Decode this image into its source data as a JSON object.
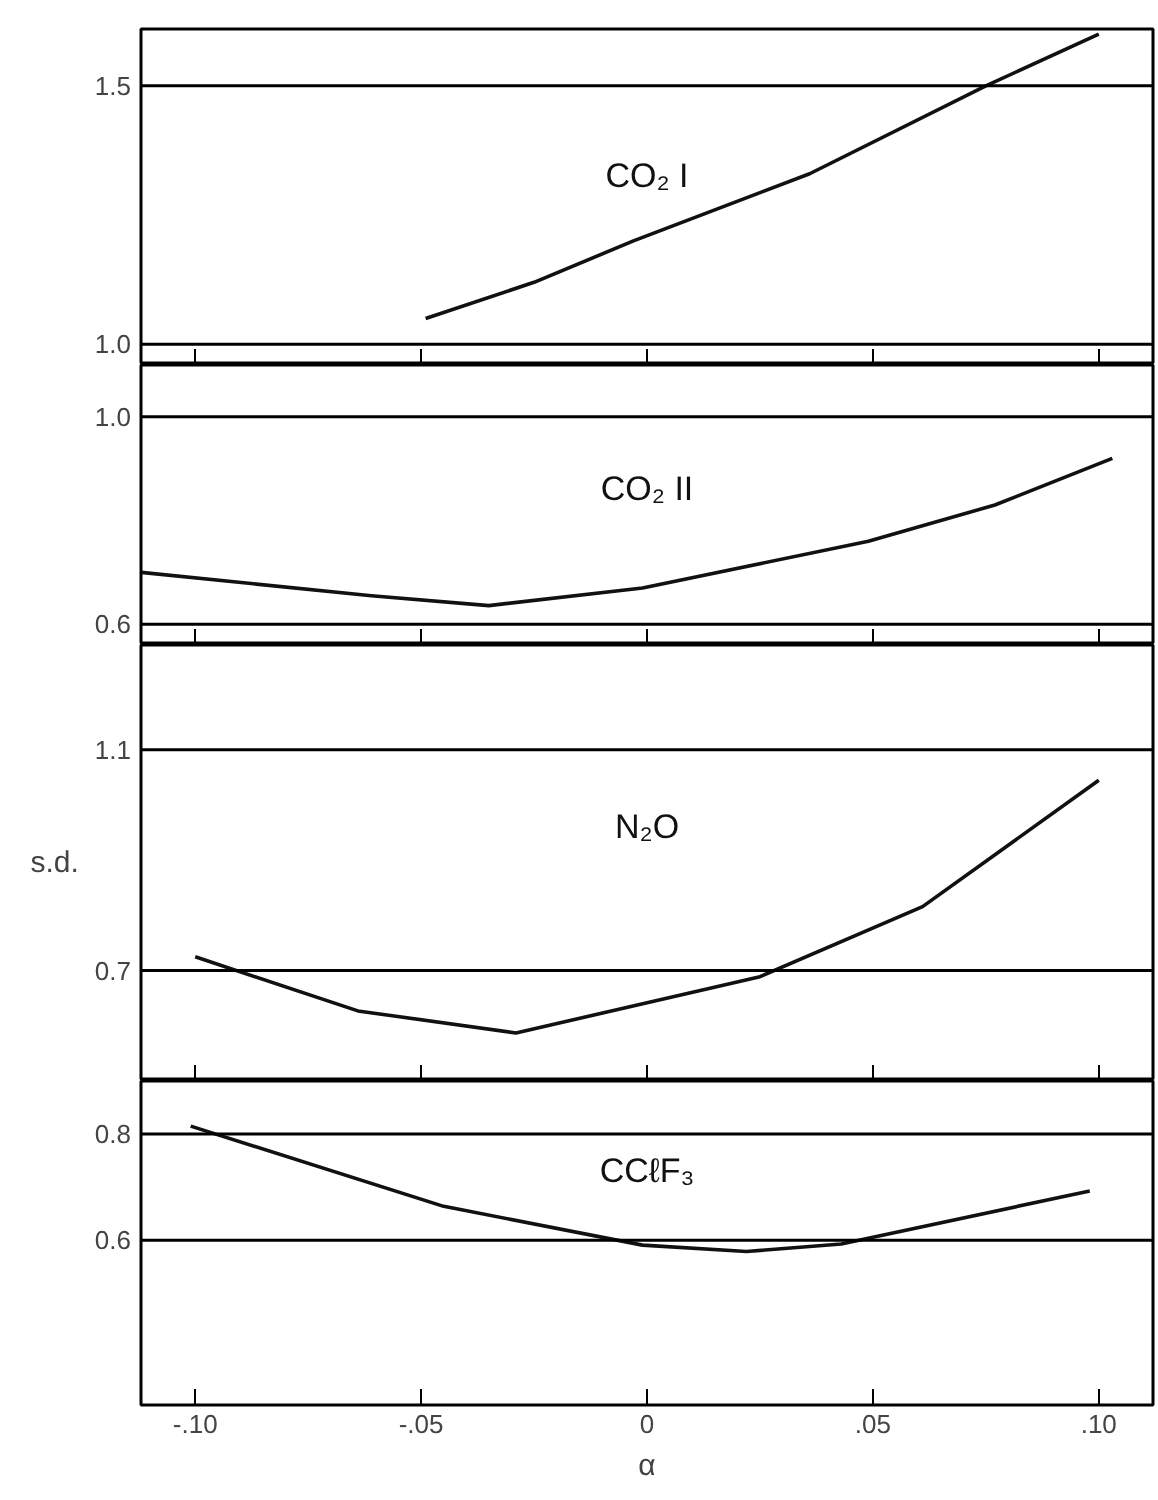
{
  "chart_data": [
    {
      "type": "line",
      "xlim": [
        -0.112,
        0.112
      ],
      "xticks": [
        {
          "value": -0.1,
          "label": null
        },
        {
          "value": -0.05,
          "label": null
        },
        {
          "value": 0,
          "label": null
        },
        {
          "value": 0.05,
          "label": null
        },
        {
          "value": 0.1,
          "label": null
        }
      ],
      "ylim": [
        0.96,
        1.61
      ],
      "yticks": [
        {
          "value": 1,
          "label": "1.0"
        },
        1.5
      ],
      "tick_labels": "y",
      "grid": false,
      "ref_lines": [
        {
          "axis": "y",
          "value": 1.5
        },
        {
          "axis": "y",
          "value": 1
        }
      ],
      "series": [
        {
          "name": "CO₂ I",
          "color": "#111111",
          "x": [
            -0.049,
            -0.025,
            -0.003,
            0.036,
            0.075,
            0.1
          ],
          "values": [
            1.05,
            1.12,
            1.2,
            1.33,
            1.5,
            1.6
          ]
        }
      ]
    },
    {
      "type": "line",
      "xlim": [
        -0.112,
        0.112
      ],
      "xticks": [
        {
          "value": -0.1,
          "label": null
        },
        {
          "value": -0.05,
          "label": null
        },
        {
          "value": 0,
          "label": null
        },
        {
          "value": 0.05,
          "label": null
        },
        {
          "value": 0.1,
          "label": null
        }
      ],
      "ylim": [
        0.56,
        1.1
      ],
      "yticks": [
        0.6,
        {
          "value": 1,
          "label": "1.0"
        }
      ],
      "tick_labels": "y",
      "grid": false,
      "ref_lines": [
        {
          "axis": "y",
          "value": 1
        },
        {
          "axis": "y",
          "value": 0.6
        }
      ],
      "series": [
        {
          "name": "CO₂ II",
          "color": "#111111",
          "x": [
            -0.112,
            -0.061,
            -0.035,
            -0.001,
            0.049,
            0.077,
            0.103
          ],
          "values": [
            0.7,
            0.655,
            0.636,
            0.67,
            0.76,
            0.83,
            0.92
          ]
        }
      ]
    },
    {
      "type": "line",
      "xlim": [
        -0.112,
        0.112
      ],
      "xticks": [
        {
          "value": -0.1,
          "label": null
        },
        {
          "value": -0.05,
          "label": null
        },
        {
          "value": 0,
          "label": null
        },
        {
          "value": 0.05,
          "label": null
        },
        {
          "value": 0.1,
          "label": null
        }
      ],
      "ylim": [
        0.5,
        1.29
      ],
      "yticks": [
        0.7,
        1.1
      ],
      "ylabel": "s.d.",
      "tick_labels": "y",
      "grid": false,
      "ref_lines": [
        {
          "axis": "y",
          "value": 1.1
        },
        {
          "axis": "y",
          "value": 0.7
        }
      ],
      "series": [
        {
          "name": "N₂O",
          "color": "#111111",
          "x": [
            -0.1,
            -0.064,
            -0.029,
            0.025,
            0.061,
            0.1
          ],
          "values": [
            0.725,
            0.627,
            0.587,
            0.689,
            0.816,
            1.045
          ]
        }
      ]
    },
    {
      "type": "line",
      "xlim": [
        -0.112,
        0.112
      ],
      "xticks": [
        {
          "value": -0.1,
          "label": "-.10"
        },
        {
          "value": -0.05,
          "label": "-.05"
        },
        {
          "value": 0,
          "label": "0"
        },
        {
          "value": 0.05,
          "label": ".05"
        },
        {
          "value": 0.1,
          "label": ".10"
        }
      ],
      "ylim": [
        0.29,
        0.9
      ],
      "yticks": [
        0.6,
        0.8
      ],
      "xlabel": "α",
      "grid": false,
      "ref_lines": [
        {
          "axis": "y",
          "value": 0.8
        },
        {
          "axis": "y",
          "value": 0.6
        }
      ],
      "series": [
        {
          "name": "CCℓF₃",
          "color": "#111111",
          "x": [
            -0.101,
            -0.045,
            -0.001,
            0.022,
            0.043,
            0.098
          ],
          "values": [
            0.815,
            0.664,
            0.591,
            0.579,
            0.593,
            0.693
          ]
        }
      ]
    }
  ]
}
